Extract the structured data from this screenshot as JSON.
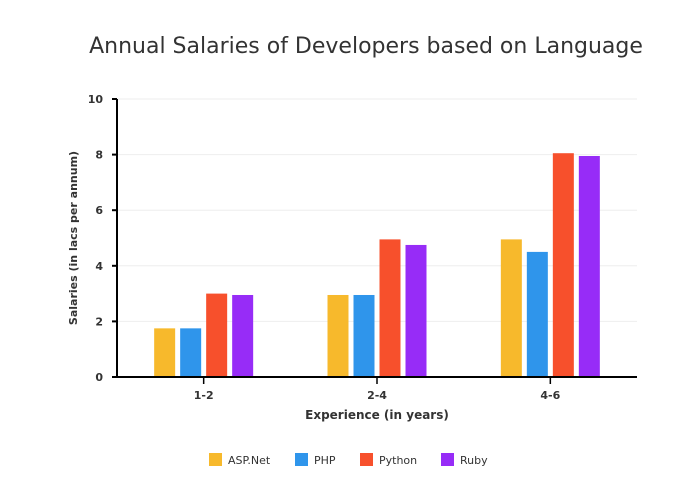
{
  "chart_data": {
    "type": "bar",
    "title": "Annual Salaries of Developers based on Language",
    "xlabel": "Experience (in years)",
    "ylabel": "Salaries (in lacs per annum)",
    "categories": [
      "1-2",
      "2-4",
      "4-6"
    ],
    "ylim": [
      0,
      10
    ],
    "yticks": [
      0,
      2,
      4,
      6,
      8,
      10
    ],
    "grid": true,
    "legend_position": "bottom",
    "series": [
      {
        "name": "ASP.Net",
        "color": "#F7B92C",
        "values": [
          1.75,
          2.95,
          4.95
        ]
      },
      {
        "name": "PHP",
        "color": "#2F95EB",
        "values": [
          1.75,
          2.95,
          4.5
        ]
      },
      {
        "name": "Python",
        "color": "#F7502C",
        "values": [
          3,
          4.95,
          8.05
        ]
      },
      {
        "name": "Ruby",
        "color": "#972CF7",
        "values": [
          2.95,
          4.75,
          7.95
        ]
      }
    ]
  }
}
